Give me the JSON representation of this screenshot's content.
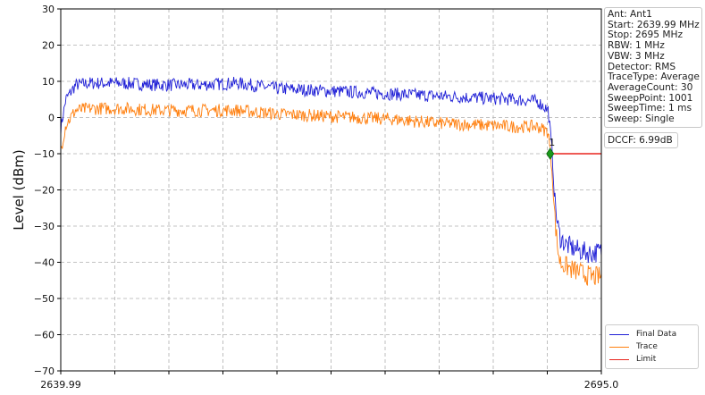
{
  "chart_data": {
    "type": "line",
    "title": "",
    "xlabel": "",
    "ylabel": "Level (dBm)",
    "xlim": [
      2639.99,
      2695.0
    ],
    "ylim": [
      -70,
      30
    ],
    "x_tick_labels": [
      "2639.99",
      "2695.0"
    ],
    "y_ticks": [
      30,
      20,
      10,
      0,
      -10,
      -20,
      -30,
      -40,
      -50,
      -60,
      -70
    ],
    "y_tick_labels": [
      "30",
      "20",
      "10",
      "0",
      "−10",
      "−20",
      "−30",
      "−40",
      "−50",
      "−60",
      "−70"
    ],
    "grid": true,
    "legend_position": "lower-right",
    "series": [
      {
        "name": "Final Data",
        "color": "#1f1fd6",
        "x": [
          2639.99,
          2640.5,
          2641.5,
          2643,
          2646,
          2650,
          2654,
          2658,
          2662,
          2666,
          2670,
          2674,
          2678,
          2682,
          2686,
          2688.5,
          2689.6,
          2690.0,
          2690.2,
          2690.5,
          2690.8,
          2691.3,
          2692,
          2693,
          2694,
          2695.0
        ],
        "values": [
          -3,
          5,
          9,
          9.5,
          9.5,
          9,
          9,
          9.5,
          8,
          7.5,
          7,
          6.5,
          6,
          5.5,
          5,
          4.5,
          2,
          -10,
          -20,
          -29,
          -33,
          -35,
          -36,
          -37,
          -37.5,
          -37
        ]
      },
      {
        "name": "Trace",
        "color": "#ff7f0e",
        "x": [
          2639.99,
          2640.5,
          2641.5,
          2643,
          2646,
          2650,
          2654,
          2658,
          2662,
          2666,
          2670,
          2674,
          2678,
          2682,
          2686,
          2688.5,
          2689.6,
          2690.0,
          2690.2,
          2690.5,
          2690.8,
          2691.3,
          2692,
          2693,
          2694,
          2695.0
        ],
        "values": [
          -9,
          -2,
          2,
          2.5,
          2.5,
          2,
          2,
          2,
          1,
          0.5,
          0,
          -0.5,
          -1.5,
          -2,
          -2.5,
          -2.5,
          -4,
          -15,
          -25,
          -35,
          -40,
          -41,
          -42,
          -43,
          -44,
          -44
        ]
      },
      {
        "name": "Limit",
        "color": "#e8251e",
        "x": [
          2689.79,
          2695.0
        ],
        "values": [
          -10,
          -10
        ]
      }
    ],
    "markers": [
      {
        "label": "1",
        "x": 2689.79,
        "y": -10,
        "color": "#1a9a1a"
      }
    ]
  },
  "info_panel": {
    "lines": [
      "Ant: Ant1",
      "Start: 2639.99 MHz",
      "Stop: 2695 MHz",
      "RBW: 1 MHz",
      "VBW: 3 MHz",
      "Detector: RMS",
      "TraceType: Average",
      "AverageCount: 30",
      "SweepPoint: 1001",
      "SweepTime: 1 ms",
      "Sweep: Single"
    ]
  },
  "dccf": {
    "text": "DCCF: 6.99dB"
  }
}
